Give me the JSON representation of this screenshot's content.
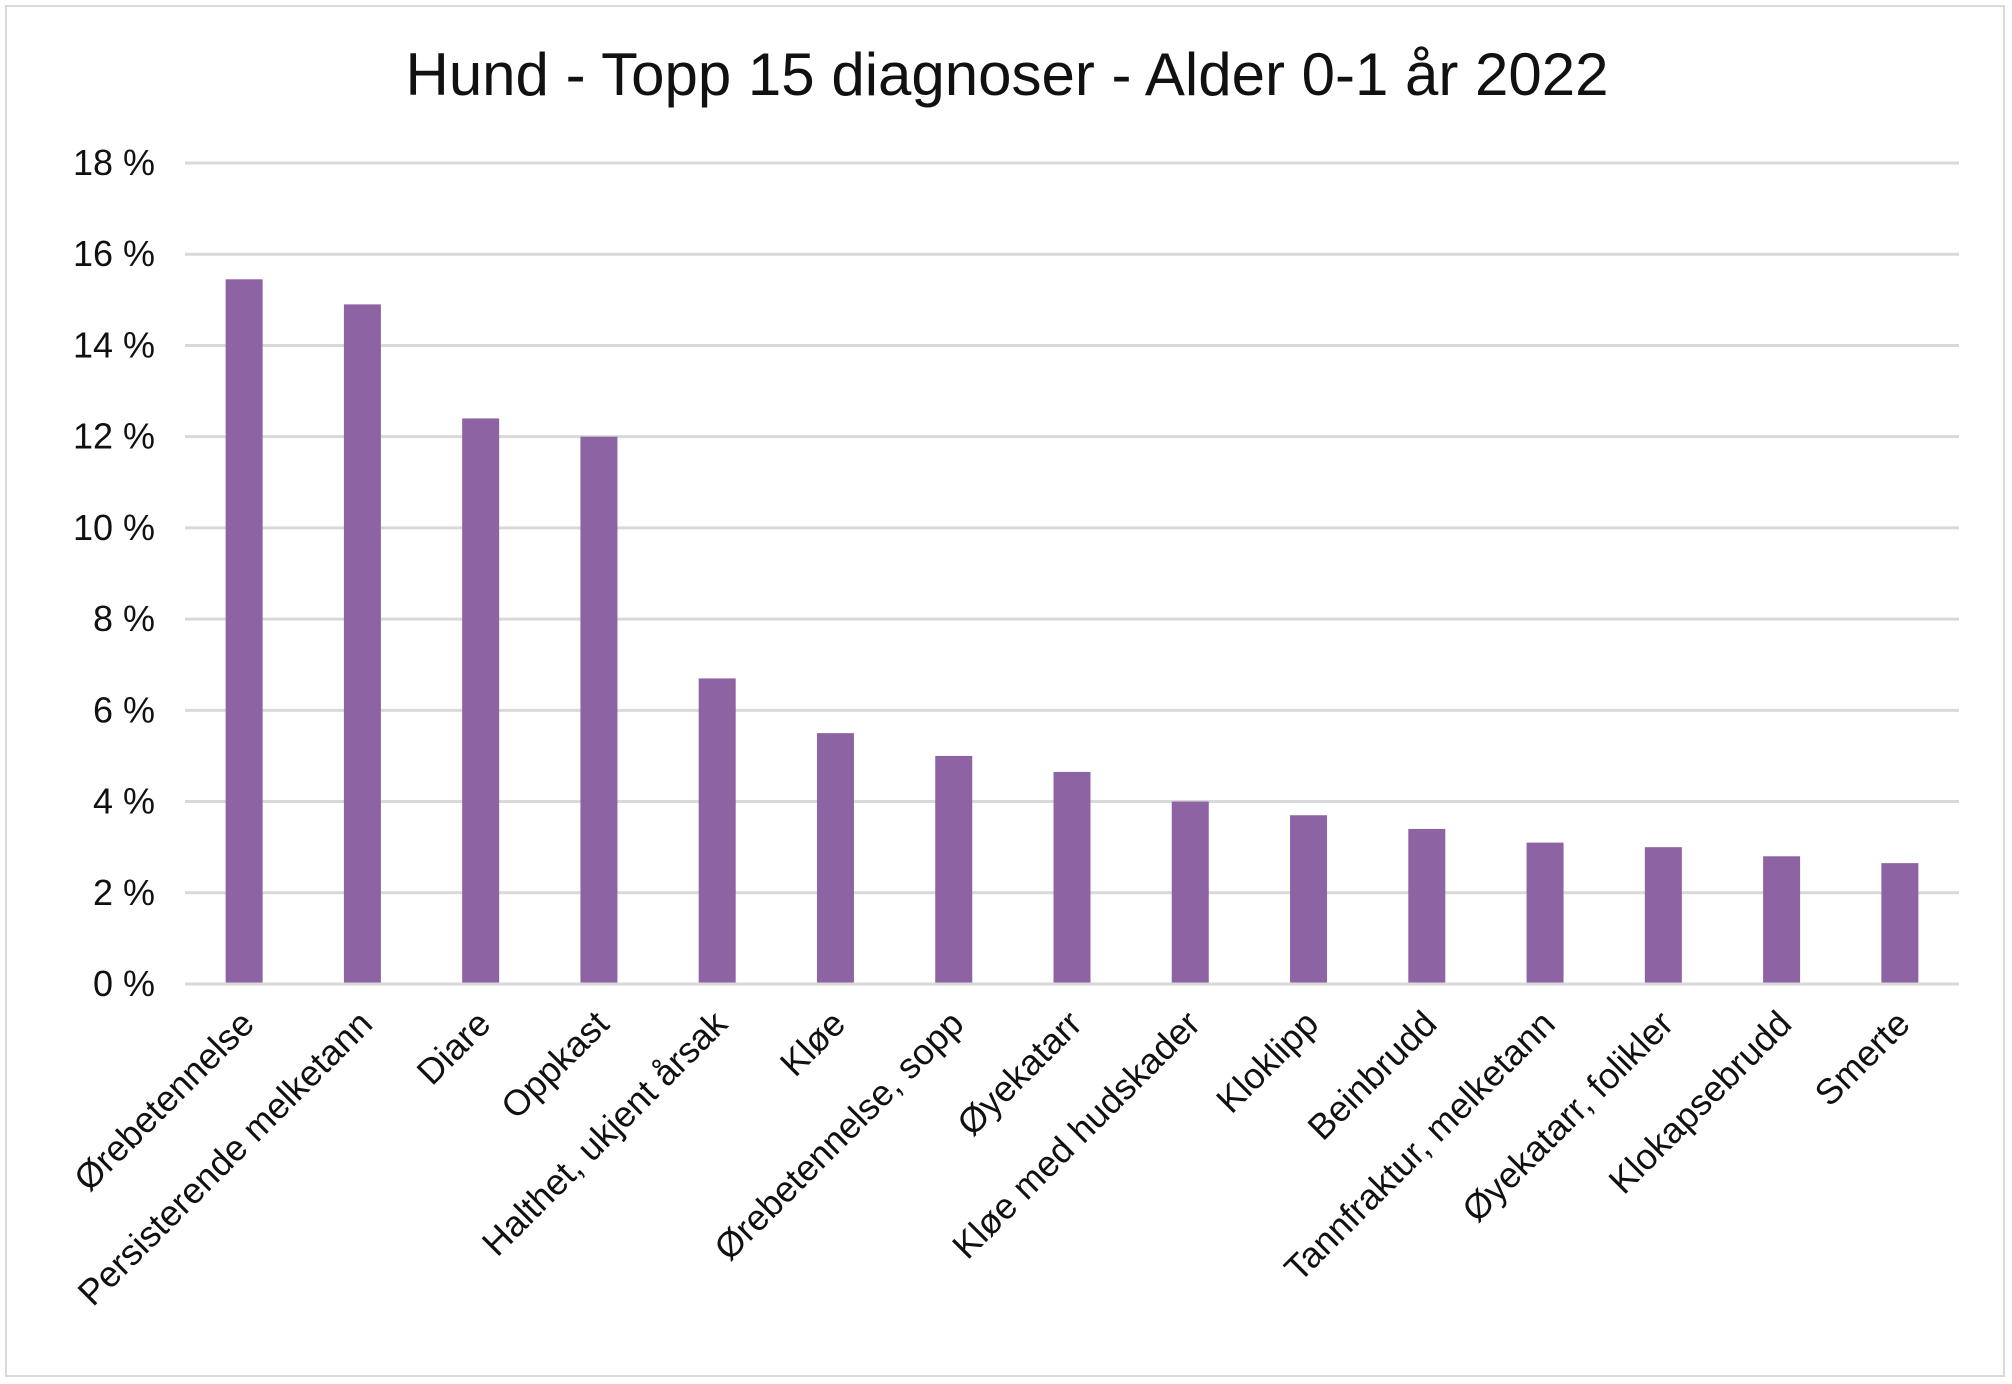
{
  "chart_data": {
    "type": "bar",
    "title": "Hund - Topp 15 diagnoser - Alder 0-1 år 2022",
    "xlabel": "",
    "ylabel": "",
    "ylim": [
      0,
      18
    ],
    "ytick_step": 2,
    "ytick_suffix": " %",
    "grid": true,
    "legend": "none",
    "bar_color": "#8e63a3",
    "categories": [
      "Ørebetennelse",
      "Persisterende melketann",
      "Diare",
      "Oppkast",
      "Halthet, ukjent årsak",
      "Kløe",
      "Ørebetennelse, sopp",
      "Øyekatarr",
      "Kløe med hudskader",
      "Kloklipp",
      "Beinbrudd",
      "Tannfraktur, melketann",
      "Øyekatarr, folikler",
      "Klokapsebrudd",
      "Smerte"
    ],
    "values": [
      15.45,
      14.9,
      12.4,
      12.0,
      6.7,
      5.5,
      5.0,
      4.65,
      4.0,
      3.7,
      3.4,
      3.1,
      3.0,
      2.8,
      2.65
    ]
  }
}
